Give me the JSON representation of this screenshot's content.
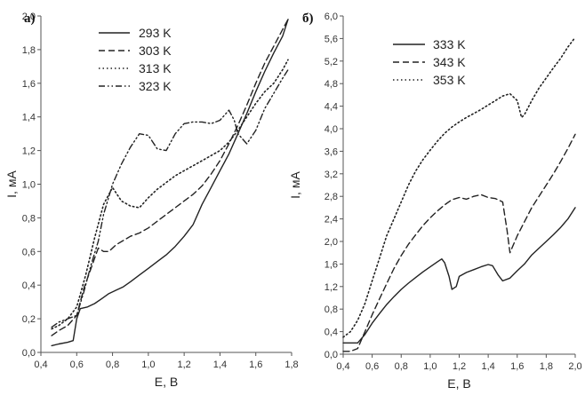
{
  "chart_data": [
    {
      "type": "line",
      "panel_label": "а)",
      "xlabel": "E, B",
      "ylabel": "I, мA",
      "xlim": [
        0.4,
        1.8
      ],
      "ylim": [
        0.0,
        2.0
      ],
      "x_ticks": [
        "0,4",
        "0,6",
        "0,8",
        "1,0",
        "1,2",
        "1,4",
        "1,6",
        "1,8"
      ],
      "y_ticks": [
        "0,0",
        "0,2",
        "0,4",
        "0,6",
        "0,8",
        "1,0",
        "1,2",
        "1,4",
        "1,6",
        "1,8",
        "2,0"
      ],
      "legend_position": "top-left",
      "grid": false,
      "series": [
        {
          "name": "293 K",
          "style": "solid",
          "points": [
            [
              0.46,
              0.04
            ],
            [
              0.5,
              0.05
            ],
            [
              0.55,
              0.06
            ],
            [
              0.58,
              0.07
            ],
            [
              0.6,
              0.2
            ],
            [
              0.62,
              0.26
            ],
            [
              0.66,
              0.27
            ],
            [
              0.7,
              0.29
            ],
            [
              0.74,
              0.32
            ],
            [
              0.78,
              0.35
            ],
            [
              0.82,
              0.37
            ],
            [
              0.86,
              0.39
            ],
            [
              0.9,
              0.42
            ],
            [
              0.95,
              0.46
            ],
            [
              1.0,
              0.5
            ],
            [
              1.05,
              0.54
            ],
            [
              1.1,
              0.58
            ],
            [
              1.15,
              0.63
            ],
            [
              1.2,
              0.69
            ],
            [
              1.25,
              0.76
            ],
            [
              1.3,
              0.88
            ],
            [
              1.35,
              0.98
            ],
            [
              1.4,
              1.08
            ],
            [
              1.45,
              1.18
            ],
            [
              1.5,
              1.3
            ],
            [
              1.55,
              1.42
            ],
            [
              1.6,
              1.55
            ],
            [
              1.65,
              1.67
            ],
            [
              1.7,
              1.78
            ],
            [
              1.75,
              1.88
            ],
            [
              1.78,
              1.98
            ]
          ]
        },
        {
          "name": "303 K",
          "style": "dashed",
          "points": [
            [
              0.46,
              0.1
            ],
            [
              0.5,
              0.13
            ],
            [
              0.55,
              0.16
            ],
            [
              0.6,
              0.22
            ],
            [
              0.64,
              0.38
            ],
            [
              0.68,
              0.5
            ],
            [
              0.72,
              0.62
            ],
            [
              0.75,
              0.6
            ],
            [
              0.78,
              0.6
            ],
            [
              0.82,
              0.64
            ],
            [
              0.9,
              0.69
            ],
            [
              0.95,
              0.71
            ],
            [
              1.0,
              0.74
            ],
            [
              1.05,
              0.78
            ],
            [
              1.1,
              0.82
            ],
            [
              1.15,
              0.86
            ],
            [
              1.2,
              0.9
            ],
            [
              1.25,
              0.94
            ],
            [
              1.3,
              0.99
            ],
            [
              1.35,
              1.06
            ],
            [
              1.4,
              1.14
            ],
            [
              1.45,
              1.24
            ],
            [
              1.5,
              1.35
            ],
            [
              1.55,
              1.47
            ],
            [
              1.6,
              1.6
            ],
            [
              1.65,
              1.72
            ],
            [
              1.7,
              1.82
            ],
            [
              1.75,
              1.92
            ],
            [
              1.78,
              1.98
            ]
          ]
        },
        {
          "name": "313 K",
          "style": "dotted",
          "points": [
            [
              0.46,
              0.14
            ],
            [
              0.5,
              0.16
            ],
            [
              0.55,
              0.2
            ],
            [
              0.6,
              0.27
            ],
            [
              0.65,
              0.46
            ],
            [
              0.7,
              0.68
            ],
            [
              0.75,
              0.88
            ],
            [
              0.8,
              0.98
            ],
            [
              0.85,
              0.9
            ],
            [
              0.9,
              0.87
            ],
            [
              0.95,
              0.86
            ],
            [
              1.0,
              0.92
            ],
            [
              1.05,
              0.97
            ],
            [
              1.1,
              1.01
            ],
            [
              1.15,
              1.05
            ],
            [
              1.2,
              1.08
            ],
            [
              1.25,
              1.11
            ],
            [
              1.3,
              1.14
            ],
            [
              1.35,
              1.17
            ],
            [
              1.4,
              1.2
            ],
            [
              1.45,
              1.25
            ],
            [
              1.5,
              1.32
            ],
            [
              1.55,
              1.4
            ],
            [
              1.6,
              1.48
            ],
            [
              1.65,
              1.55
            ],
            [
              1.7,
              1.6
            ],
            [
              1.75,
              1.68
            ],
            [
              1.78,
              1.74
            ]
          ]
        },
        {
          "name": "323 K",
          "style": "dashdotdot",
          "points": [
            [
              0.46,
              0.15
            ],
            [
              0.5,
              0.18
            ],
            [
              0.55,
              0.2
            ],
            [
              0.6,
              0.22
            ],
            [
              0.64,
              0.36
            ],
            [
              0.68,
              0.52
            ],
            [
              0.72,
              0.66
            ],
            [
              0.75,
              0.82
            ],
            [
              0.8,
              1.0
            ],
            [
              0.85,
              1.12
            ],
            [
              0.9,
              1.22
            ],
            [
              0.95,
              1.3
            ],
            [
              1.0,
              1.29
            ],
            [
              1.05,
              1.21
            ],
            [
              1.1,
              1.2
            ],
            [
              1.15,
              1.3
            ],
            [
              1.2,
              1.36
            ],
            [
              1.25,
              1.37
            ],
            [
              1.3,
              1.37
            ],
            [
              1.35,
              1.36
            ],
            [
              1.4,
              1.38
            ],
            [
              1.45,
              1.44
            ],
            [
              1.48,
              1.38
            ],
            [
              1.5,
              1.3
            ],
            [
              1.55,
              1.24
            ],
            [
              1.6,
              1.32
            ],
            [
              1.65,
              1.45
            ],
            [
              1.7,
              1.54
            ],
            [
              1.75,
              1.63
            ],
            [
              1.78,
              1.68
            ]
          ]
        }
      ]
    },
    {
      "type": "line",
      "panel_label": "б)",
      "xlabel": "E, B",
      "ylabel": "I, мA",
      "xlim": [
        0.4,
        2.0
      ],
      "ylim": [
        0.0,
        6.0
      ],
      "x_ticks": [
        "0,4",
        "0,6",
        "0,8",
        "1,0",
        "1,2",
        "1,4",
        "1,6",
        "1,8",
        "2,0"
      ],
      "y_ticks": [
        "0,0",
        "0,4",
        "0,8",
        "1,2",
        "1,6",
        "2,0",
        "2,4",
        "2,8",
        "3,2",
        "3,6",
        "4,0",
        "4,4",
        "4,8",
        "5,2",
        "5,6",
        "6,0"
      ],
      "legend_position": "top-left",
      "grid": false,
      "series": [
        {
          "name": "333 K",
          "style": "solid",
          "points": [
            [
              0.4,
              0.2
            ],
            [
              0.45,
              0.2
            ],
            [
              0.5,
              0.2
            ],
            [
              0.55,
              0.35
            ],
            [
              0.6,
              0.55
            ],
            [
              0.65,
              0.72
            ],
            [
              0.7,
              0.88
            ],
            [
              0.75,
              1.02
            ],
            [
              0.8,
              1.15
            ],
            [
              0.85,
              1.26
            ],
            [
              0.9,
              1.36
            ],
            [
              0.95,
              1.46
            ],
            [
              1.0,
              1.55
            ],
            [
              1.05,
              1.64
            ],
            [
              1.08,
              1.69
            ],
            [
              1.1,
              1.62
            ],
            [
              1.13,
              1.38
            ],
            [
              1.15,
              1.15
            ],
            [
              1.18,
              1.2
            ],
            [
              1.2,
              1.38
            ],
            [
              1.25,
              1.45
            ],
            [
              1.3,
              1.5
            ],
            [
              1.35,
              1.55
            ],
            [
              1.4,
              1.59
            ],
            [
              1.43,
              1.57
            ],
            [
              1.47,
              1.4
            ],
            [
              1.5,
              1.3
            ],
            [
              1.55,
              1.35
            ],
            [
              1.6,
              1.48
            ],
            [
              1.65,
              1.6
            ],
            [
              1.7,
              1.76
            ],
            [
              1.75,
              1.88
            ],
            [
              1.8,
              2.0
            ],
            [
              1.85,
              2.12
            ],
            [
              1.9,
              2.25
            ],
            [
              1.95,
              2.4
            ],
            [
              2.0,
              2.6
            ]
          ]
        },
        {
          "name": "343 K",
          "style": "dashed",
          "points": [
            [
              0.4,
              0.05
            ],
            [
              0.45,
              0.05
            ],
            [
              0.5,
              0.1
            ],
            [
              0.55,
              0.4
            ],
            [
              0.6,
              0.7
            ],
            [
              0.65,
              0.98
            ],
            [
              0.7,
              1.25
            ],
            [
              0.75,
              1.52
            ],
            [
              0.8,
              1.75
            ],
            [
              0.85,
              1.95
            ],
            [
              0.9,
              2.12
            ],
            [
              0.95,
              2.28
            ],
            [
              1.0,
              2.42
            ],
            [
              1.05,
              2.54
            ],
            [
              1.1,
              2.65
            ],
            [
              1.15,
              2.74
            ],
            [
              1.2,
              2.78
            ],
            [
              1.25,
              2.75
            ],
            [
              1.3,
              2.8
            ],
            [
              1.35,
              2.83
            ],
            [
              1.4,
              2.78
            ],
            [
              1.45,
              2.76
            ],
            [
              1.5,
              2.7
            ],
            [
              1.53,
              2.2
            ],
            [
              1.55,
              1.8
            ],
            [
              1.6,
              2.1
            ],
            [
              1.65,
              2.35
            ],
            [
              1.7,
              2.6
            ],
            [
              1.75,
              2.8
            ],
            [
              1.8,
              3.0
            ],
            [
              1.85,
              3.2
            ],
            [
              1.9,
              3.42
            ],
            [
              1.95,
              3.65
            ],
            [
              2.0,
              3.9
            ]
          ]
        },
        {
          "name": "353 K",
          "style": "dotted",
          "points": [
            [
              0.4,
              0.3
            ],
            [
              0.45,
              0.4
            ],
            [
              0.5,
              0.6
            ],
            [
              0.55,
              0.9
            ],
            [
              0.6,
              1.3
            ],
            [
              0.65,
              1.7
            ],
            [
              0.7,
              2.1
            ],
            [
              0.75,
              2.4
            ],
            [
              0.8,
              2.7
            ],
            [
              0.85,
              3.0
            ],
            [
              0.9,
              3.25
            ],
            [
              0.95,
              3.45
            ],
            [
              1.0,
              3.62
            ],
            [
              1.05,
              3.78
            ],
            [
              1.1,
              3.92
            ],
            [
              1.15,
              4.03
            ],
            [
              1.2,
              4.12
            ],
            [
              1.25,
              4.2
            ],
            [
              1.3,
              4.27
            ],
            [
              1.35,
              4.34
            ],
            [
              1.4,
              4.42
            ],
            [
              1.45,
              4.5
            ],
            [
              1.5,
              4.58
            ],
            [
              1.55,
              4.62
            ],
            [
              1.6,
              4.5
            ],
            [
              1.63,
              4.2
            ],
            [
              1.65,
              4.25
            ],
            [
              1.7,
              4.5
            ],
            [
              1.75,
              4.72
            ],
            [
              1.8,
              4.9
            ],
            [
              1.85,
              5.08
            ],
            [
              1.9,
              5.25
            ],
            [
              1.95,
              5.45
            ],
            [
              2.0,
              5.62
            ]
          ]
        }
      ]
    }
  ]
}
